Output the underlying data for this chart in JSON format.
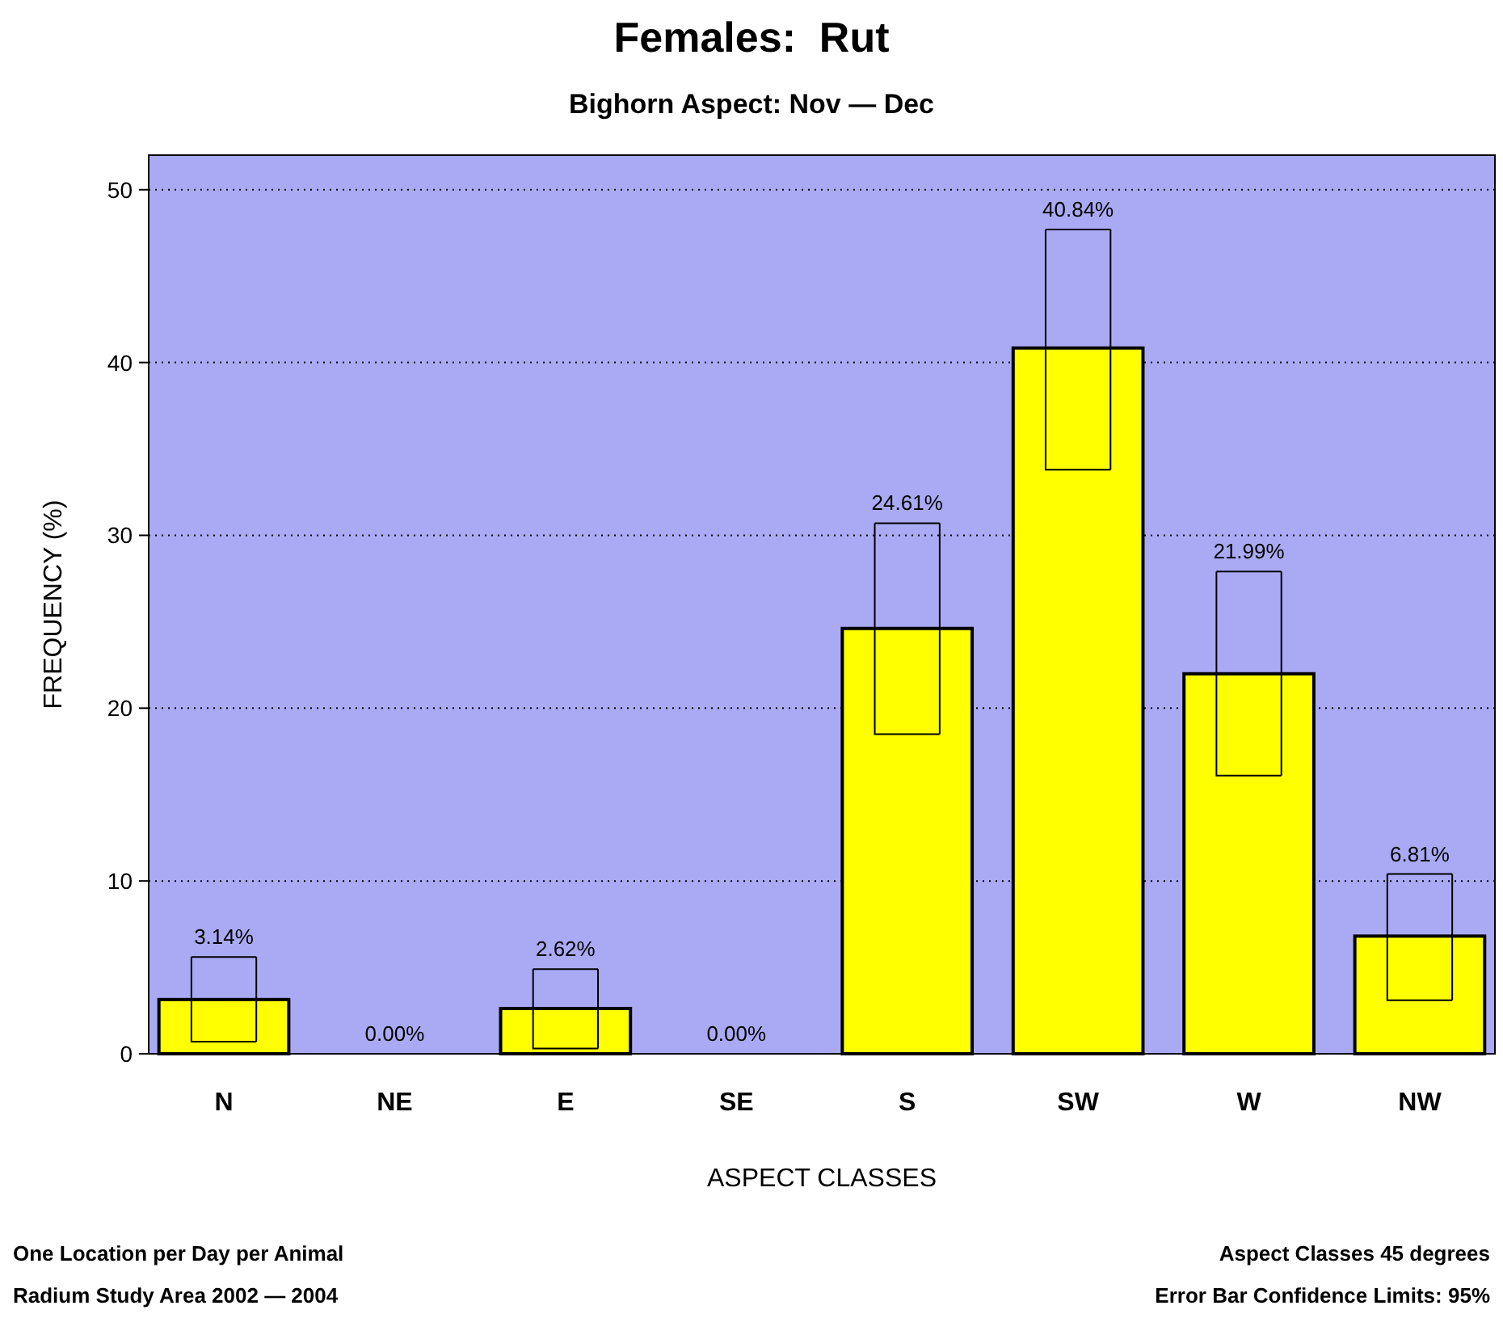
{
  "chart_data": {
    "type": "bar",
    "title": "Females:  Rut",
    "subtitle": "Bighorn Aspect: Nov — Dec",
    "xlabel": "ASPECT CLASSES",
    "ylabel": "FREQUENCY (%)",
    "categories": [
      "N",
      "NE",
      "E",
      "SE",
      "S",
      "SW",
      "W",
      "NW"
    ],
    "values": [
      3.14,
      0,
      2.62,
      0,
      24.61,
      40.84,
      21.99,
      6.81
    ],
    "errors": [
      [
        0.7,
        5.6
      ],
      null,
      [
        0.3,
        4.9
      ],
      null,
      [
        18.5,
        30.7
      ],
      [
        33.8,
        47.7
      ],
      [
        16.1,
        27.9
      ],
      [
        3.1,
        10.4
      ]
    ],
    "value_labels": [
      "3.14%",
      "0.00%",
      "2.62%",
      "0.00%",
      "24.61%",
      "40.84%",
      "21.99%",
      "6.81%"
    ],
    "color": "#ffff00",
    "ylim": [
      0,
      52
    ],
    "yticks": [
      0,
      10,
      20,
      30,
      40,
      50
    ],
    "grid": "y",
    "annotations": [
      "One Location per Day per Animal",
      "Radium Study Area 2002 — 2004",
      "Aspect Classes 45 degrees",
      "Error Bar Confidence Limits: 95%"
    ]
  }
}
